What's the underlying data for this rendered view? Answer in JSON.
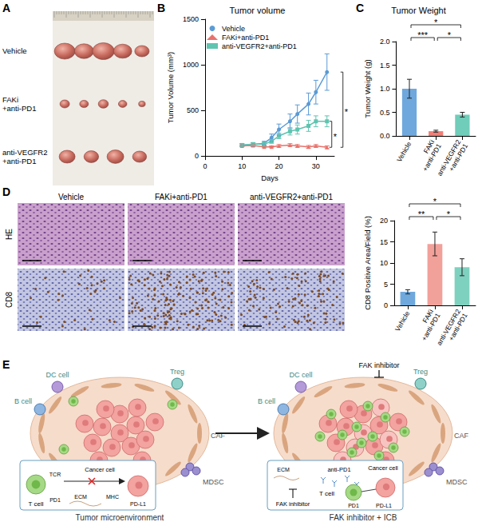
{
  "panel_letters": [
    "A",
    "B",
    "C",
    "D",
    "E"
  ],
  "photo": {
    "rows": [
      {
        "label": "Vehicle",
        "tumors": 5
      },
      {
        "label": "FAKi+anti-PD1",
        "tumors": 5
      },
      {
        "label": "anti-VEGFR2+anti-PD1",
        "tumors": 4
      }
    ]
  },
  "chart_data": [
    {
      "type": "line",
      "title": "Tumor volume",
      "x_label": "Days",
      "y_label": "Tumor Volume (mm³)",
      "xlim": [
        0,
        35
      ],
      "xticks": [
        0,
        10,
        20,
        30
      ],
      "ylim": [
        0,
        1500
      ],
      "yticks": [
        0,
        500,
        1000,
        1500
      ],
      "legend": "top-left",
      "x": [
        10,
        13,
        16,
        18,
        20,
        23,
        25,
        28,
        30,
        33
      ],
      "series": [
        {
          "name": "Vehicle",
          "color": "#5b9bd5",
          "marker": "circle",
          "values": [
            120,
            125,
            140,
            200,
            290,
            380,
            460,
            570,
            700,
            920
          ],
          "errors": [
            15,
            20,
            20,
            40,
            60,
            80,
            100,
            120,
            130,
            200
          ]
        },
        {
          "name": "FAKi+anti-PD1",
          "color": "#e8736c",
          "marker": "triangle",
          "values": [
            110,
            115,
            100,
            100,
            110,
            120,
            110,
            100,
            110,
            95
          ],
          "errors": [
            10,
            10,
            10,
            10,
            15,
            15,
            15,
            15,
            15,
            15
          ]
        },
        {
          "name": "anti-VEGFR2+anti-PD1",
          "color": "#5fc4b0",
          "marker": "square",
          "values": [
            120,
            130,
            130,
            160,
            220,
            270,
            290,
            330,
            380,
            380
          ],
          "errors": [
            15,
            15,
            20,
            20,
            30,
            40,
            50,
            60,
            60,
            60
          ]
        }
      ],
      "significance": [
        {
          "from": "Vehicle",
          "to": "FAKi+anti-PD1",
          "label": "*"
        },
        {
          "from": "anti-VEGFR2+anti-PD1",
          "to": "FAKi+anti-PD1",
          "label": "*"
        }
      ]
    },
    {
      "type": "bar",
      "title": "Tumor Weight",
      "y_label": "Tumor Weight (g)",
      "categories": [
        "Vehicle",
        "FAKi+anti-PD1",
        "anti-VEGFR2+anti-PD1"
      ],
      "values": [
        1.0,
        0.1,
        0.45
      ],
      "errors": [
        0.2,
        0.02,
        0.05
      ],
      "colors": [
        "#6fa8dc",
        "#ef7f78",
        "#6fcdb9"
      ],
      "ylim": [
        0,
        2
      ],
      "yticks": [
        {
          "value": 0,
          "label": "0.0"
        },
        {
          "value": 0.5,
          "label": "0.5"
        },
        {
          "value": 1,
          "label": "1.0"
        },
        {
          "value": 1.5,
          "label": "1.5"
        },
        {
          "value": 2,
          "label": "2.0"
        }
      ],
      "significance": [
        {
          "from": "Vehicle",
          "to": "FAKi+anti-PD1",
          "label": "***"
        },
        {
          "from": "FAKi+anti-PD1",
          "to": "anti-VEGFR2+anti-PD1",
          "label": "*"
        },
        {
          "from": "Vehicle",
          "to": "anti-VEGFR2+anti-PD1",
          "label": "*"
        }
      ]
    },
    {
      "type": "bar",
      "y_label": "CD8 Positive Area/Field (%)",
      "categories": [
        "Vehicle",
        "FAKi+anti-PD1",
        "anti-VEGFR2+anti-PD1"
      ],
      "values": [
        3.2,
        14.5,
        9.0
      ],
      "errors": [
        0.5,
        2.8,
        2.0
      ],
      "colors": [
        "#6fa8dc",
        "#f2a09a",
        "#7fd1bf"
      ],
      "ylim": [
        0,
        20
      ],
      "yticks": [
        0,
        5,
        10,
        15,
        20
      ],
      "significance": [
        {
          "from": "Vehicle",
          "to": "FAKi+anti-PD1",
          "label": "**"
        },
        {
          "from": "FAKi+anti-PD1",
          "to": "anti-VEGFR2+anti-PD1",
          "label": "*"
        },
        {
          "from": "Vehicle",
          "to": "anti-VEGFR2+anti-PD1",
          "label": "*"
        }
      ]
    }
  ],
  "histology": {
    "columns": [
      "Vehicle",
      "FAKi+anti-PD1",
      "anti-VEGFR2+anti-PD1"
    ],
    "rows": [
      "HE",
      "CD8"
    ]
  },
  "diagram": {
    "left": {
      "caption": "Tumor microenvironment",
      "cells": {
        "dc": "DC cell",
        "treg": "Treg",
        "b": "B cell",
        "caf": "CAF",
        "mdsc": "MDSC"
      },
      "inset": {
        "t_cell": "T cell",
        "tcr": "TCR",
        "pd1": "PD1",
        "mhc": "MHC",
        "cancer": "Cancer cell",
        "pdl1": "PD-L1",
        "ecm": "ECM"
      }
    },
    "right": {
      "caption": "FAK inhibitor + ICB",
      "drug": "FAK inhibitor",
      "cells": {
        "dc": "DC cell",
        "treg": "Treg",
        "b": "B cell",
        "caf": "CAF",
        "mdsc": "MDSC"
      },
      "inset": {
        "ecm": "ECM",
        "antibody": "anti-PD1",
        "cancer": "Cancer cell",
        "t_cell": "T cell",
        "inhibitor": "FAK inhibitor",
        "pd1": "PD1",
        "pdl1": "PD-L1"
      }
    }
  }
}
